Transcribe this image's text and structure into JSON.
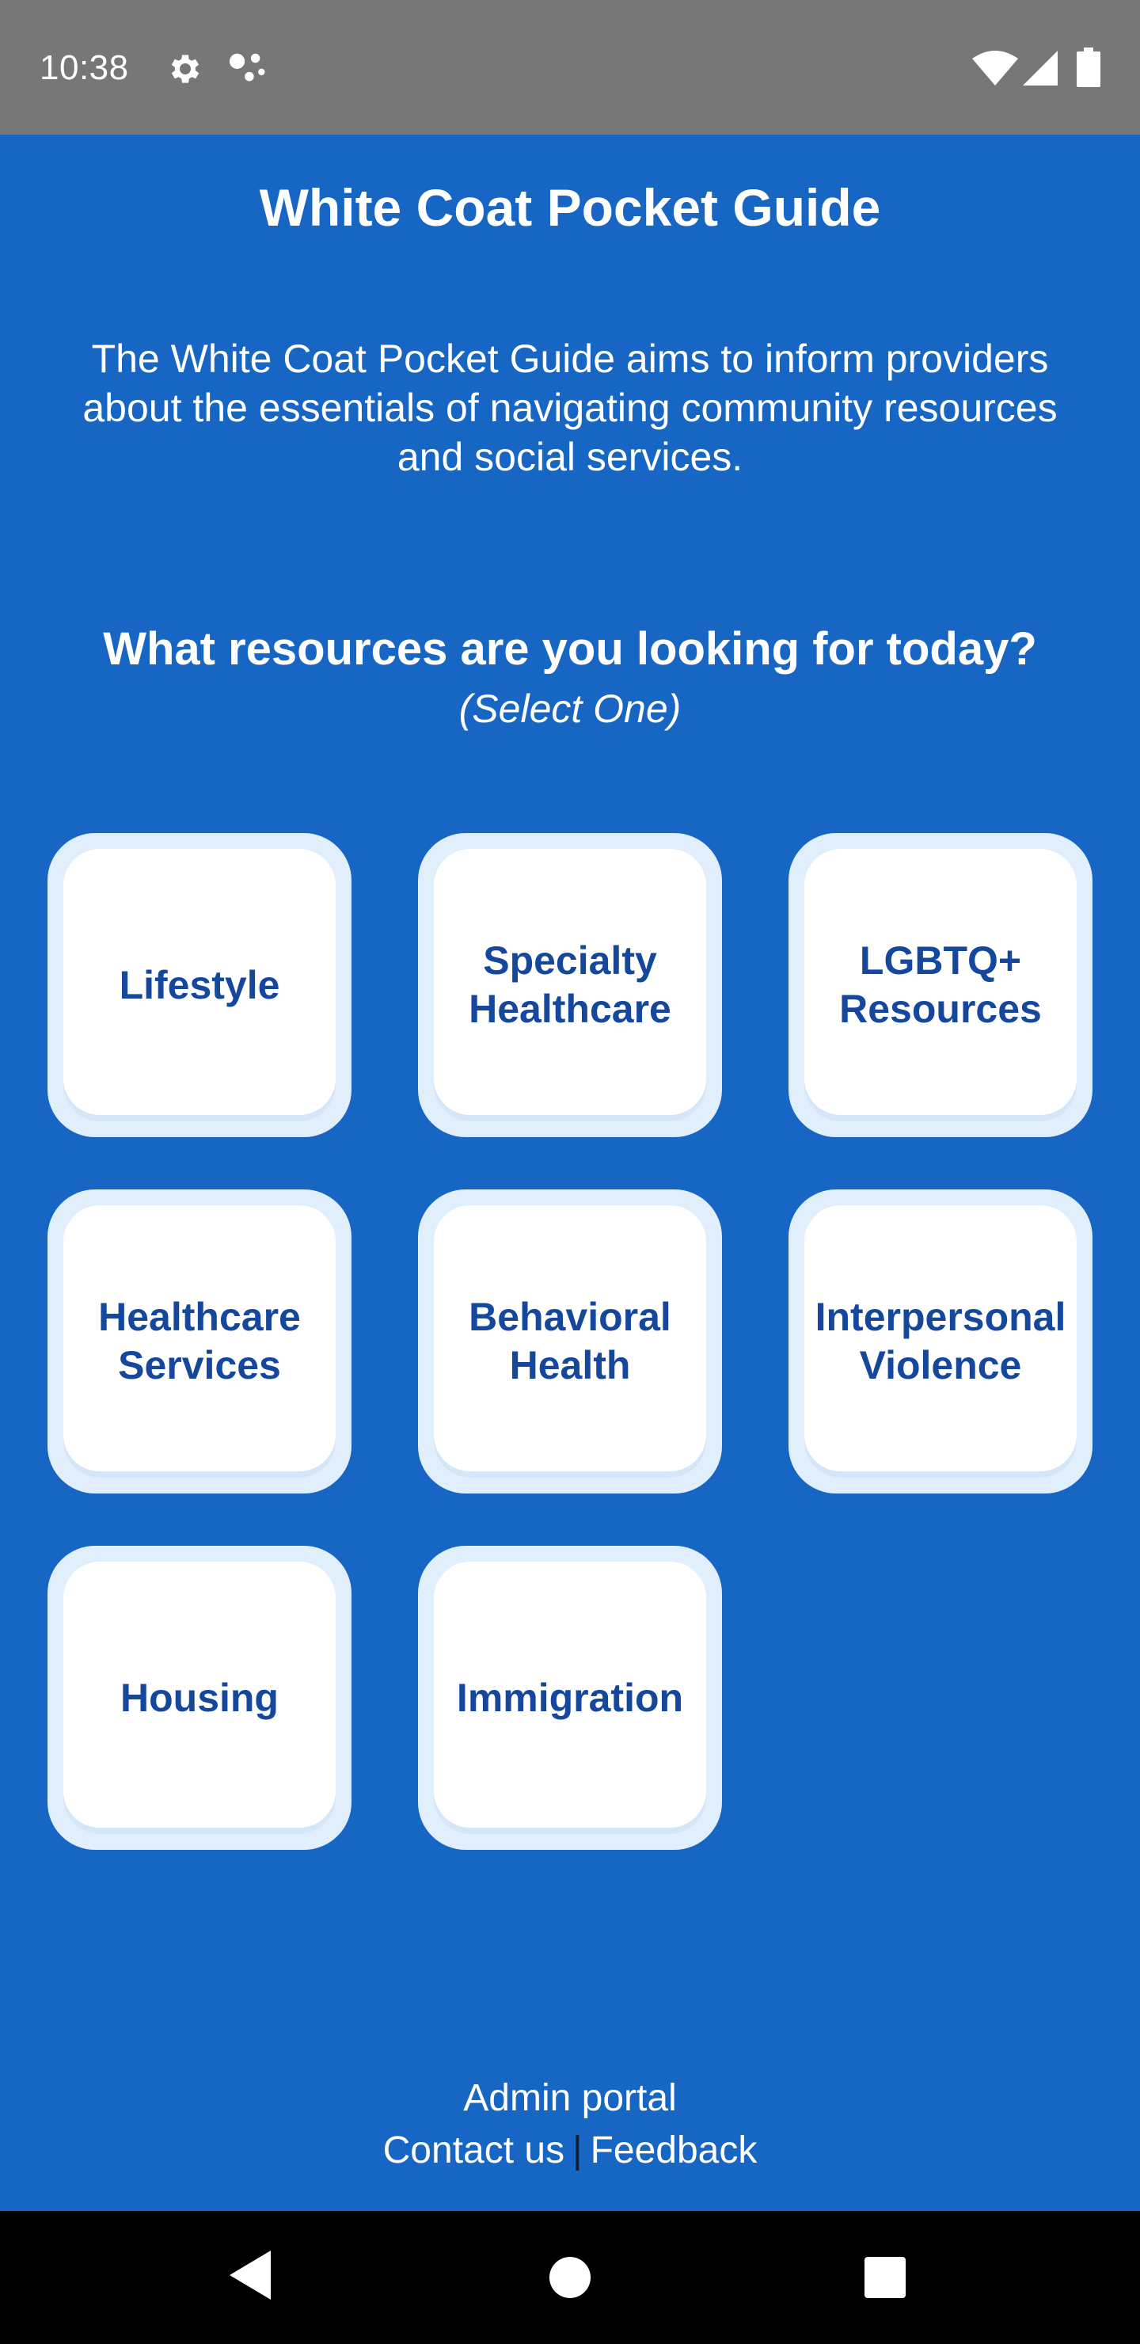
{
  "status_bar": {
    "time": "10:38",
    "icons": [
      "gear-icon",
      "assistant-icon",
      "wifi-icon",
      "signal-icon",
      "battery-icon"
    ]
  },
  "header": {
    "title": "White Coat Pocket Guide",
    "description": "The White Coat Pocket Guide aims to inform providers about the essentials of navigating community resources and social services."
  },
  "prompt": {
    "question": "What resources are you looking for today?",
    "hint": "(Select One)"
  },
  "categories": [
    {
      "label": "Lifestyle"
    },
    {
      "label": "Specialty Healthcare"
    },
    {
      "label": "LGBTQ+ Resources"
    },
    {
      "label": "Healthcare Services"
    },
    {
      "label": "Behavioral Health"
    },
    {
      "label": "Interpersonal Violence"
    },
    {
      "label": "Housing"
    },
    {
      "label": "Immigration"
    }
  ],
  "footer": {
    "admin_portal": "Admin portal",
    "contact_us": "Contact us",
    "separator": "|",
    "feedback": "Feedback"
  },
  "nav_bar": {
    "icons": [
      "back-icon",
      "home-icon",
      "recents-icon"
    ]
  },
  "colors": {
    "background": "#1766c3",
    "status_bar": "#777777",
    "tile_border": "#e1effc",
    "tile_text": "#15479c",
    "nav_bar": "#000000"
  }
}
